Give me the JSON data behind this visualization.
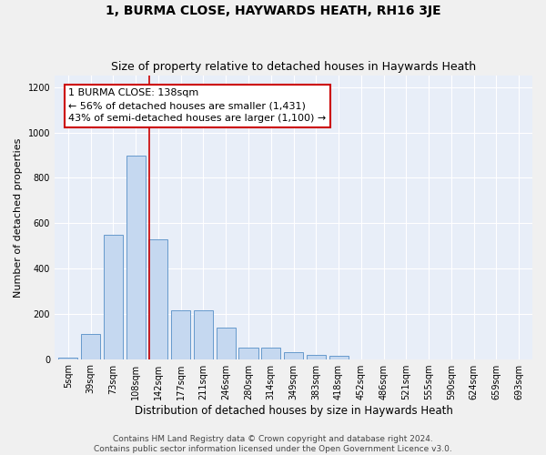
{
  "title": "1, BURMA CLOSE, HAYWARDS HEATH, RH16 3JE",
  "subtitle": "Size of property relative to detached houses in Haywards Heath",
  "xlabel": "Distribution of detached houses by size in Haywards Heath",
  "ylabel": "Number of detached properties",
  "categories": [
    "5sqm",
    "39sqm",
    "73sqm",
    "108sqm",
    "142sqm",
    "177sqm",
    "211sqm",
    "246sqm",
    "280sqm",
    "314sqm",
    "349sqm",
    "383sqm",
    "418sqm",
    "452sqm",
    "486sqm",
    "521sqm",
    "555sqm",
    "590sqm",
    "624sqm",
    "659sqm",
    "693sqm"
  ],
  "bar_heights": [
    5,
    110,
    550,
    900,
    530,
    215,
    215,
    140,
    50,
    50,
    30,
    20,
    15,
    0,
    0,
    0,
    0,
    0,
    0,
    0,
    0
  ],
  "bar_color": "#c5d8f0",
  "bar_edge_color": "#6699cc",
  "fig_bg_color": "#f0f0f0",
  "ax_bg_color": "#e8eef8",
  "grid_color": "#ffffff",
  "annotation_text_line1": "1 BURMA CLOSE: 138sqm",
  "annotation_text_line2": "← 56% of detached houses are smaller (1,431)",
  "annotation_text_line3": "43% of semi-detached houses are larger (1,100) →",
  "annotation_box_facecolor": "#ffffff",
  "annotation_box_edgecolor": "#cc0000",
  "vline_x": 3.58,
  "vline_color": "#cc0000",
  "ylim": [
    0,
    1250
  ],
  "yticks": [
    0,
    200,
    400,
    600,
    800,
    1000,
    1200
  ],
  "footer_text": "Contains HM Land Registry data © Crown copyright and database right 2024.\nContains public sector information licensed under the Open Government Licence v3.0.",
  "title_fontsize": 10,
  "subtitle_fontsize": 9,
  "xlabel_fontsize": 8.5,
  "ylabel_fontsize": 8,
  "tick_fontsize": 7,
  "annotation_fontsize": 8,
  "footer_fontsize": 6.5
}
